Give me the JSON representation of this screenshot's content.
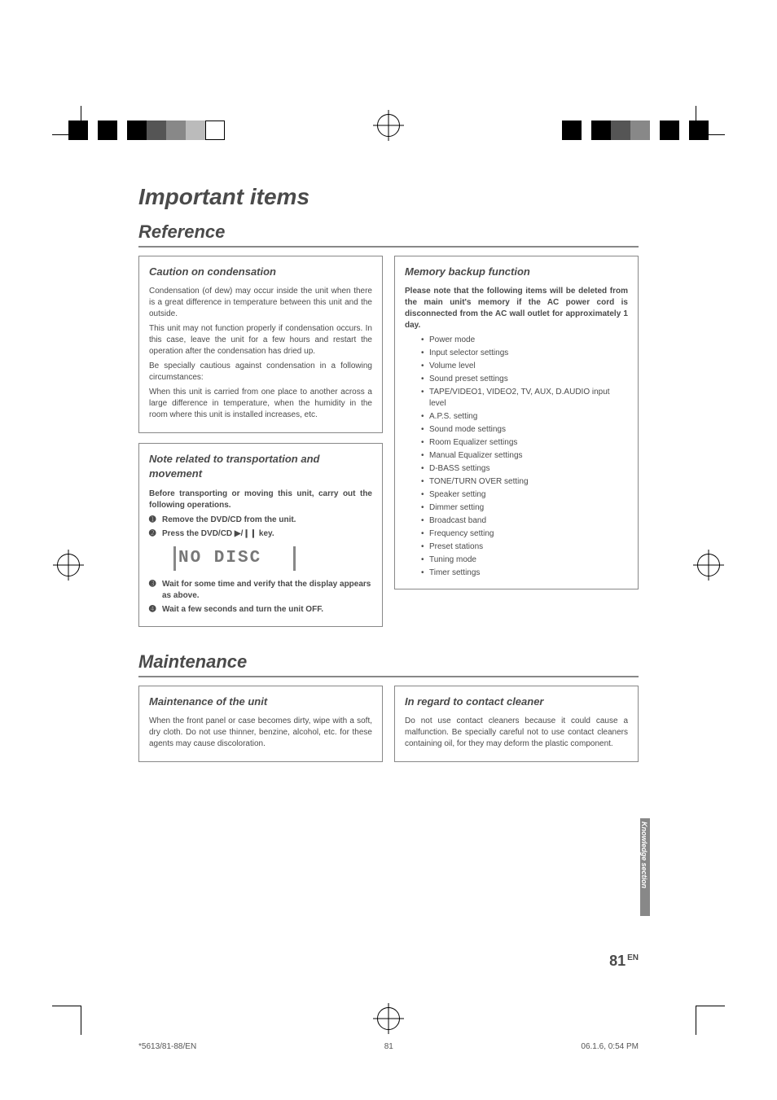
{
  "h1": "Important items",
  "ref": "Reference",
  "maint_h": "Maintenance",
  "box1": {
    "title": "Caution on condensation",
    "p1": "Condensation (of dew) may occur inside the unit when there is a great difference in temperature between this unit and the outside.",
    "p2": "This unit may not function properly if condensation occurs. In this case, leave the unit for a few hours and restart the operation after the condensation has dried up.",
    "p3": "Be specially cautious against condensation in a following circumstances:",
    "p4": "When this unit is carried from one place to another across a large difference in temperature, when the humidity in the room where this unit is installed increases, etc."
  },
  "box2": {
    "title": "Note related to transportation and movement",
    "intro": "Before transporting or moving this unit, carry out the following operations.",
    "s1": "Remove the DVD/CD from the unit.",
    "s2": "Press the DVD/CD ▶/❙❙ key.",
    "display": "NO DISC",
    "s3": "Wait for some time and verify that the display appears as above.",
    "s4": "Wait a few seconds and turn the unit OFF."
  },
  "box3": {
    "title": "Memory backup function",
    "intro": "Please note that the following items will be deleted from the main unit's memory if the AC power cord is disconnected from the AC wall outlet for approximately 1 day.",
    "items": [
      "Power mode",
      "Input selector settings",
      "Volume level",
      "Sound preset settings",
      "TAPE/VIDEO1, VIDEO2, TV, AUX, D.AUDIO input level",
      "A.P.S. setting",
      "Sound mode settings",
      "Room Equalizer settings",
      "Manual Equalizer settings",
      "D-BASS settings",
      "TONE/TURN OVER setting",
      "Speaker setting",
      "Dimmer setting",
      "Broadcast band",
      "Frequency setting",
      "Preset stations",
      "Tuning mode",
      "Timer settings"
    ]
  },
  "box4": {
    "title": "Maintenance of the unit",
    "p": "When the front panel or case becomes dirty, wipe with a soft, dry cloth. Do not use thinner, benzine, alcohol, etc. for these agents may cause discoloration."
  },
  "box5": {
    "title": "In regard to contact cleaner",
    "p": "Do not use contact cleaners because it could cause a malfunction. Be specially careful not to use contact cleaners containing oil, for they may deform the plastic component."
  },
  "sidetab": "Knowledge section",
  "pagenum": "81",
  "pagenum_suffix": "EN",
  "footer_left": "*5613/81-88/EN",
  "footer_center": "81",
  "footer_right": "06.1.6, 0:54 PM"
}
